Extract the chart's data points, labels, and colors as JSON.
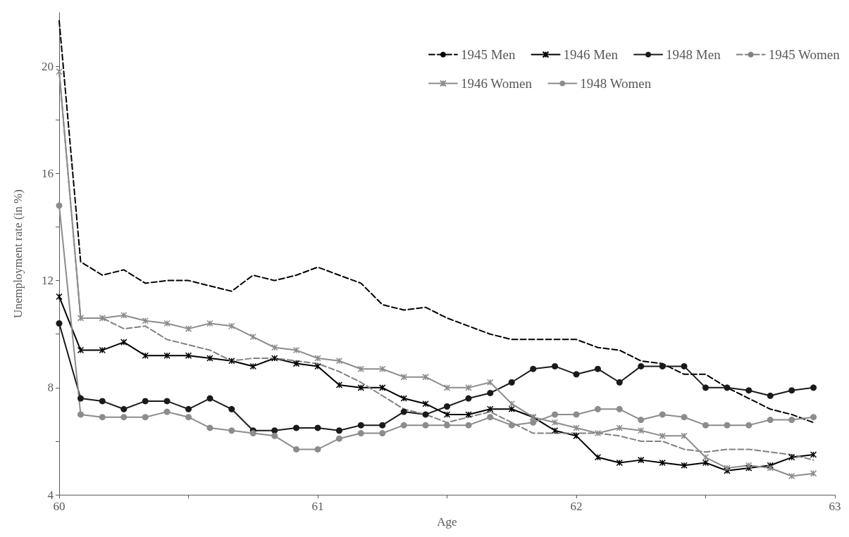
{
  "chart_data": {
    "type": "line",
    "xlabel": "Age",
    "ylabel": "Unemployment rate (in %)",
    "x": [
      60,
      60.083,
      60.167,
      60.25,
      60.333,
      60.417,
      60.5,
      60.583,
      60.667,
      60.75,
      60.833,
      60.917,
      61,
      61.083,
      61.167,
      61.25,
      61.333,
      61.417,
      61.5,
      61.583,
      61.667,
      61.75,
      61.833,
      61.917,
      62,
      62.083,
      62.167,
      62.25,
      62.333,
      62.417,
      62.5,
      62.583,
      62.667,
      62.75,
      62.833,
      62.917
    ],
    "series": [
      {
        "name": "1945 Men",
        "color": "#000000",
        "line_style": "dashed",
        "marker": "none",
        "values": [
          21.7,
          12.7,
          12.2,
          12.4,
          11.9,
          12,
          12,
          11.8,
          11.6,
          12.2,
          12,
          12.2,
          12.5,
          12.2,
          11.9,
          11.1,
          10.9,
          11,
          10.6,
          10.3,
          10,
          9.8,
          9.8,
          9.8,
          9.8,
          9.5,
          9.4,
          9,
          8.9,
          8.5,
          8.5,
          8,
          7.6,
          7.2,
          7,
          6.7
        ]
      },
      {
        "name": "1946 Men",
        "color": "#000000",
        "line_style": "solid",
        "marker": "cross",
        "values": [
          11.4,
          9.4,
          9.4,
          9.7,
          9.2,
          9.2,
          9.2,
          9.1,
          9,
          8.8,
          9.1,
          8.9,
          8.8,
          8.1,
          8,
          8,
          7.6,
          7.4,
          7,
          7,
          7.2,
          7.2,
          6.9,
          6.4,
          6.2,
          5.4,
          5.2,
          5.3,
          5.2,
          5.1,
          5.2,
          4.9,
          5,
          5.1,
          5.4,
          5.5
        ]
      },
      {
        "name": "1948 Men",
        "color": "#1a1a1a",
        "line_style": "solid",
        "marker": "circle",
        "values": [
          10.4,
          7.6,
          7.5,
          7.2,
          7.5,
          7.5,
          7.2,
          7.6,
          7.2,
          6.4,
          6.4,
          6.5,
          6.5,
          6.4,
          6.6,
          6.6,
          7.1,
          7,
          7.3,
          7.6,
          7.8,
          8.2,
          8.7,
          8.8,
          8.5,
          8.7,
          8.2,
          8.8,
          8.8,
          8.8,
          8,
          8,
          7.9,
          7.7,
          7.9,
          8
        ]
      },
      {
        "name": "1945 Women",
        "color": "#808080",
        "line_style": "dashed",
        "marker": "none",
        "values": [
          19.8,
          10.6,
          10.6,
          10.2,
          10.3,
          9.8,
          9.6,
          9.4,
          9,
          9.1,
          9.1,
          9,
          8.9,
          8.6,
          8.2,
          7.7,
          7.2,
          7,
          6.7,
          6.9,
          7.1,
          6.7,
          6.3,
          6.3,
          6.3,
          6.3,
          6.2,
          6,
          6,
          5.7,
          5.6,
          5.7,
          5.7,
          5.6,
          5.5,
          5.3
        ]
      },
      {
        "name": "1946 Women",
        "color": "#8c8c8c",
        "line_style": "solid",
        "marker": "cross",
        "values": [
          19.8,
          10.6,
          10.6,
          10.7,
          10.5,
          10.4,
          10.2,
          10.4,
          10.3,
          9.9,
          9.5,
          9.4,
          9.1,
          9,
          8.7,
          8.7,
          8.4,
          8.4,
          8,
          8,
          8.2,
          7.4,
          6.9,
          6.7,
          6.5,
          6.3,
          6.5,
          6.4,
          6.2,
          6.2,
          5.4,
          5,
          5.1,
          5,
          4.7,
          4.8
        ]
      },
      {
        "name": "1948 Women",
        "color": "#8c8c8c",
        "line_style": "solid",
        "marker": "circle",
        "values": [
          14.8,
          7,
          6.9,
          6.9,
          6.9,
          7.1,
          6.9,
          6.5,
          6.4,
          6.3,
          6.2,
          5.7,
          5.7,
          6.1,
          6.3,
          6.3,
          6.6,
          6.6,
          6.6,
          6.6,
          6.9,
          6.6,
          6.7,
          7,
          7,
          7.2,
          7.2,
          6.8,
          7,
          6.9,
          6.6,
          6.6,
          6.6,
          6.8,
          6.8,
          6.9
        ]
      }
    ],
    "xlim": [
      60,
      63
    ],
    "xticks": [
      60,
      {
        "value": 60.5,
        "label": null
      },
      61,
      {
        "value": 61.5,
        "label": null
      },
      62,
      {
        "value": 62.5,
        "label": null
      },
      63
    ],
    "ylim": [
      4,
      22
    ],
    "yticks": [
      4,
      {
        "value": 6,
        "label": null
      },
      8,
      {
        "value": 10,
        "label": null
      },
      12,
      {
        "value": 14,
        "label": null
      },
      16,
      {
        "value": 18,
        "label": null
      },
      20
    ],
    "grid": false,
    "legend": "top right"
  }
}
